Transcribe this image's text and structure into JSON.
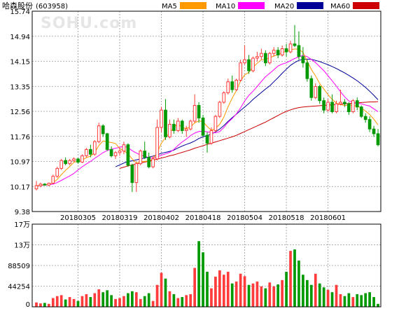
{
  "stock": {
    "name": "哈森股份",
    "code": "(603958)"
  },
  "watermark": "SOHU.com",
  "colors": {
    "up": "#ff3b3b",
    "down": "#009900",
    "ma5": "#ff9900",
    "ma10": "#ff00ff",
    "ma20": "#000099",
    "ma60": "#cc0000",
    "grid": "#999999",
    "axis_text": "#000000"
  },
  "legend": [
    {
      "label": "MA5",
      "color": "#ff9900"
    },
    {
      "label": "MA10",
      "color": "#ff00ff"
    },
    {
      "label": "MA20",
      "color": "#000099"
    },
    {
      "label": "MA60",
      "color": "#cc0000"
    }
  ],
  "chart_data": [
    {
      "type": "candlestick",
      "ylim": [
        9.38,
        15.74
      ],
      "y_ticks": [
        "15.74",
        "14.94",
        "14.15",
        "13.35",
        "12.56",
        "11.76",
        "10.97",
        "10.17",
        "9.38"
      ],
      "x_tick_labels": [
        {
          "label": "20180305",
          "index": 10
        },
        {
          "label": "20180319",
          "index": 20
        },
        {
          "label": "20180402",
          "index": 30
        },
        {
          "label": "20180418",
          "index": 40
        },
        {
          "label": "20180504",
          "index": 50
        },
        {
          "label": "20180518",
          "index": 60
        },
        {
          "label": "20180601",
          "index": 70
        }
      ],
      "ohlc": [
        [
          10.1,
          10.35,
          10.05,
          10.2
        ],
        [
          10.2,
          10.3,
          10.15,
          10.25
        ],
        [
          10.25,
          10.28,
          10.2,
          10.22
        ],
        [
          10.22,
          10.3,
          10.18,
          10.28
        ],
        [
          10.28,
          10.55,
          10.25,
          10.5
        ],
        [
          10.5,
          10.8,
          10.45,
          10.75
        ],
        [
          10.75,
          11.05,
          10.7,
          11.0
        ],
        [
          11.0,
          11.1,
          10.85,
          10.9
        ],
        [
          10.9,
          11.05,
          10.85,
          11.0
        ],
        [
          11.0,
          11.1,
          10.95,
          11.05
        ],
        [
          11.05,
          11.08,
          10.9,
          10.95
        ],
        [
          10.95,
          11.2,
          10.92,
          11.15
        ],
        [
          11.15,
          11.4,
          11.1,
          11.35
        ],
        [
          11.35,
          11.5,
          11.1,
          11.2
        ],
        [
          11.2,
          11.65,
          11.15,
          11.6
        ],
        [
          11.6,
          12.2,
          11.55,
          12.1
        ],
        [
          12.1,
          12.15,
          11.75,
          11.85
        ],
        [
          11.85,
          11.88,
          11.3,
          11.35
        ],
        [
          11.35,
          11.45,
          11.1,
          11.15
        ],
        [
          11.15,
          11.3,
          11.05,
          11.25
        ],
        [
          11.25,
          11.4,
          11.15,
          11.3
        ],
        [
          11.3,
          11.6,
          11.2,
          11.5
        ],
        [
          11.5,
          11.55,
          10.8,
          10.85
        ],
        [
          10.85,
          10.9,
          10.0,
          10.3
        ],
        [
          10.3,
          10.95,
          10.0,
          10.9
        ],
        [
          10.9,
          11.35,
          10.85,
          11.3
        ],
        [
          11.3,
          11.6,
          11.05,
          11.1
        ],
        [
          11.1,
          11.25,
          10.75,
          10.8
        ],
        [
          10.8,
          11.15,
          10.75,
          11.05
        ],
        [
          11.05,
          12.3,
          11.0,
          12.05
        ],
        [
          12.05,
          12.7,
          11.9,
          12.6
        ],
        [
          12.6,
          12.95,
          11.65,
          11.75
        ],
        [
          11.75,
          12.3,
          11.7,
          12.15
        ],
        [
          12.15,
          12.3,
          11.85,
          11.95
        ],
        [
          11.95,
          12.35,
          11.9,
          12.25
        ],
        [
          12.25,
          12.3,
          11.85,
          11.95
        ],
        [
          11.95,
          12.1,
          11.75,
          12.0
        ],
        [
          12.0,
          12.3,
          11.95,
          12.25
        ],
        [
          12.25,
          13.1,
          12.2,
          12.75
        ],
        [
          12.75,
          12.85,
          12.2,
          12.35
        ],
        [
          12.35,
          12.45,
          11.75,
          11.8
        ],
        [
          11.8,
          11.9,
          11.25,
          11.55
        ],
        [
          11.55,
          12.05,
          11.5,
          11.95
        ],
        [
          11.95,
          12.45,
          11.9,
          12.4
        ],
        [
          12.4,
          12.9,
          12.35,
          12.85
        ],
        [
          12.85,
          13.2,
          12.8,
          13.15
        ],
        [
          13.15,
          13.6,
          13.1,
          13.5
        ],
        [
          13.5,
          13.7,
          13.15,
          13.25
        ],
        [
          13.25,
          13.6,
          13.2,
          13.55
        ],
        [
          13.55,
          14.2,
          13.5,
          14.1
        ],
        [
          14.1,
          14.65,
          14.05,
          14.2
        ],
        [
          14.2,
          14.35,
          13.75,
          13.85
        ],
        [
          13.85,
          14.3,
          13.8,
          14.25
        ],
        [
          14.25,
          14.45,
          14.15,
          14.3
        ],
        [
          14.3,
          14.55,
          14.2,
          14.4
        ],
        [
          14.4,
          14.5,
          14.0,
          14.1
        ],
        [
          14.1,
          14.45,
          14.05,
          14.4
        ],
        [
          14.4,
          14.6,
          14.3,
          14.5
        ],
        [
          14.5,
          14.6,
          14.25,
          14.35
        ],
        [
          14.35,
          14.65,
          14.3,
          14.55
        ],
        [
          14.55,
          14.7,
          14.3,
          14.45
        ],
        [
          14.45,
          14.8,
          14.4,
          14.7
        ],
        [
          14.7,
          15.3,
          14.6,
          14.65
        ],
        [
          14.65,
          15.1,
          14.2,
          14.3
        ],
        [
          14.3,
          14.6,
          13.95,
          14.1
        ],
        [
          14.1,
          14.2,
          13.5,
          13.6
        ],
        [
          13.6,
          13.7,
          12.9,
          13.0
        ],
        [
          13.0,
          13.45,
          12.95,
          13.35
        ],
        [
          13.35,
          13.4,
          12.8,
          12.9
        ],
        [
          12.9,
          13.0,
          12.5,
          12.6
        ],
        [
          12.6,
          12.95,
          12.55,
          12.85
        ],
        [
          12.85,
          13.1,
          12.5,
          12.55
        ],
        [
          12.55,
          12.9,
          12.5,
          12.8
        ],
        [
          12.8,
          13.25,
          12.75,
          12.85
        ],
        [
          12.85,
          12.95,
          12.7,
          12.8
        ],
        [
          12.8,
          12.85,
          12.45,
          12.55
        ],
        [
          12.55,
          12.95,
          12.5,
          12.9
        ],
        [
          12.9,
          13.0,
          12.6,
          12.7
        ],
        [
          12.7,
          12.75,
          12.35,
          12.4
        ],
        [
          12.4,
          12.5,
          12.2,
          12.3
        ],
        [
          12.3,
          12.4,
          11.9,
          12.0
        ],
        [
          12.0,
          12.1,
          11.75,
          11.85
        ],
        [
          11.85,
          12.0,
          11.45,
          11.5
        ]
      ],
      "ma5": [
        10.2,
        10.22,
        10.23,
        10.24,
        10.29,
        10.4,
        10.55,
        10.69,
        10.81,
        10.94,
        10.98,
        11.01,
        11.09,
        11.14,
        11.25,
        11.48,
        11.62,
        11.6,
        11.57,
        11.54,
        11.38,
        11.31,
        11.21,
        11.05,
        10.92,
        10.96,
        10.97,
        10.99,
        11.05,
        11.25,
        11.55,
        11.73,
        11.88,
        12.05,
        12.17,
        12.04,
        12.02,
        12.07,
        12.19,
        12.26,
        12.23,
        12.08,
        11.96,
        12.02,
        12.15,
        12.38,
        12.71,
        12.98,
        13.22,
        13.52,
        13.72,
        13.8,
        13.96,
        14.09,
        14.2,
        14.21,
        14.26,
        14.32,
        14.36,
        14.43,
        14.46,
        14.52,
        14.54,
        14.54,
        14.43,
        14.16,
        13.89,
        13.69,
        13.44,
        13.27,
        13.09,
        12.94,
        12.82,
        12.78,
        12.74,
        12.77,
        12.75,
        12.73,
        12.67,
        12.57,
        12.46,
        12.31,
        12.13
      ],
      "ma10": [
        10.2,
        10.21,
        10.22,
        10.23,
        10.25,
        10.3,
        10.37,
        10.44,
        10.51,
        10.59,
        10.7,
        10.8,
        10.89,
        10.97,
        11.07,
        11.16,
        11.25,
        11.32,
        11.36,
        11.39,
        11.42,
        11.45,
        11.41,
        11.31,
        11.24,
        11.17,
        11.14,
        11.09,
        11.08,
        11.11,
        11.17,
        11.21,
        11.26,
        11.35,
        11.48,
        11.59,
        11.68,
        11.79,
        11.87,
        11.92,
        11.93,
        11.91,
        11.89,
        11.88,
        11.92,
        12.05,
        12.21,
        12.33,
        12.48,
        12.67,
        12.89,
        13.07,
        13.2,
        13.35,
        13.51,
        13.66,
        13.77,
        13.88,
        14.0,
        14.06,
        14.1,
        14.17,
        14.24,
        14.29,
        14.34,
        14.3,
        14.21,
        14.11,
        13.98,
        13.85,
        13.69,
        13.53,
        13.36,
        13.18,
        13.02,
        12.89,
        12.85,
        12.82,
        12.8,
        12.76,
        12.73,
        12.64,
        12.55
      ],
      "ma20": [
        null,
        null,
        null,
        null,
        null,
        null,
        null,
        null,
        null,
        null,
        null,
        null,
        null,
        null,
        null,
        null,
        null,
        null,
        null,
        10.8,
        10.86,
        10.92,
        10.97,
        10.99,
        11.02,
        11.05,
        11.08,
        11.11,
        11.14,
        11.18,
        11.23,
        11.26,
        11.29,
        11.33,
        11.4,
        11.46,
        11.51,
        11.56,
        11.62,
        11.7,
        11.75,
        11.79,
        11.84,
        11.91,
        12.0,
        12.11,
        12.24,
        12.36,
        12.47,
        12.59,
        12.7,
        12.81,
        12.94,
        13.05,
        13.16,
        13.27,
        13.37,
        13.5,
        13.63,
        13.77,
        13.9,
        14.02,
        14.11,
        14.18,
        14.21,
        14.22,
        14.21,
        14.18,
        14.14,
        14.09,
        14.04,
        13.98,
        13.92,
        13.85,
        13.78,
        13.7,
        13.62,
        13.53,
        13.43,
        13.32,
        13.2,
        13.07,
        12.93
      ],
      "ma60": [
        null,
        null,
        null,
        null,
        null,
        null,
        null,
        null,
        null,
        null,
        null,
        null,
        null,
        null,
        null,
        null,
        null,
        null,
        null,
        null,
        10.75,
        10.79,
        10.83,
        10.86,
        10.89,
        10.92,
        10.95,
        10.98,
        11.01,
        11.04,
        11.08,
        11.11,
        11.15,
        11.18,
        11.22,
        11.26,
        11.3,
        11.34,
        11.39,
        11.43,
        11.47,
        11.51,
        11.55,
        11.59,
        11.63,
        11.67,
        11.71,
        11.75,
        11.8,
        11.86,
        11.92,
        11.98,
        12.04,
        12.1,
        12.16,
        12.22,
        12.29,
        12.36,
        12.43,
        12.5,
        12.56,
        12.61,
        12.65,
        12.68,
        12.7,
        12.71,
        12.72,
        12.73,
        12.74,
        12.75,
        12.76,
        12.77,
        12.78,
        12.79,
        12.8,
        12.81,
        12.82,
        12.83,
        12.84,
        12.85,
        12.86,
        12.86,
        12.87
      ]
    },
    {
      "type": "bar",
      "ylim": [
        0,
        170000
      ],
      "y_ticks": [
        "17万",
        "13万",
        "88509",
        "44254",
        "0"
      ],
      "volume": [
        9000,
        7000,
        8000,
        6000,
        18000,
        22000,
        24000,
        15000,
        20000,
        16000,
        12000,
        22000,
        26000,
        20000,
        28000,
        36000,
        30000,
        34000,
        24000,
        16000,
        18000,
        22000,
        28000,
        32000,
        30000,
        16000,
        22000,
        28000,
        12000,
        45000,
        70000,
        58000,
        32000,
        26000,
        18000,
        20000,
        24000,
        26000,
        80000,
        135000,
        112000,
        72000,
        38000,
        62000,
        75000,
        66000,
        72000,
        48000,
        52000,
        68000,
        63000,
        45000,
        48000,
        52000,
        42000,
        38000,
        50000,
        42000,
        46000,
        55000,
        72000,
        115000,
        118000,
        95000,
        66000,
        55000,
        45000,
        68000,
        48000,
        40000,
        35000,
        30000,
        45000,
        26000,
        22000,
        28000,
        20000,
        26000,
        24000,
        28000,
        30000,
        20000,
        6000
      ]
    }
  ]
}
